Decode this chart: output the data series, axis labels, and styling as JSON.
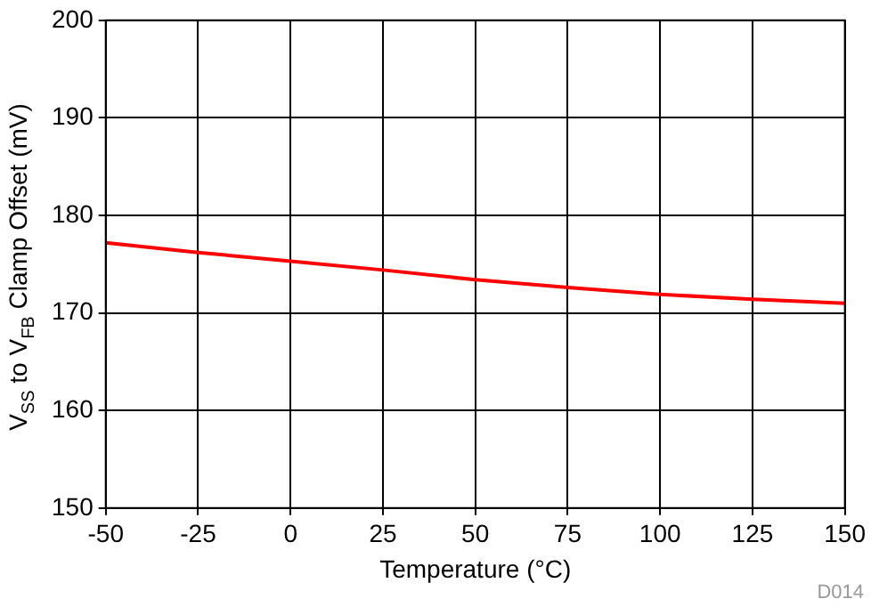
{
  "chart_data": {
    "type": "line",
    "xlabel": "Temperature (°C)",
    "ylabel": "V$_{SS}$ to V$_{FB}$ Clamp Offset (mV)",
    "annotations": [
      "D014"
    ],
    "x": [
      -50,
      -25,
      0,
      25,
      50,
      75,
      100,
      125,
      150
    ],
    "series": [
      {
        "color": "#ff0000",
        "values": [
          177.2,
          176.2,
          175.3,
          174.4,
          173.4,
          172.6,
          171.9,
          171.4,
          171.0
        ]
      }
    ],
    "xlim": [
      -50,
      150
    ],
    "xticks": [
      -50,
      -25,
      0,
      25,
      50,
      75,
      100,
      125,
      150
    ],
    "ylim": [
      150,
      200
    ],
    "yticks": [
      150,
      160,
      170,
      180,
      190,
      200
    ],
    "grid": true,
    "legend": false,
    "marker": "none",
    "line_style": "solid"
  }
}
